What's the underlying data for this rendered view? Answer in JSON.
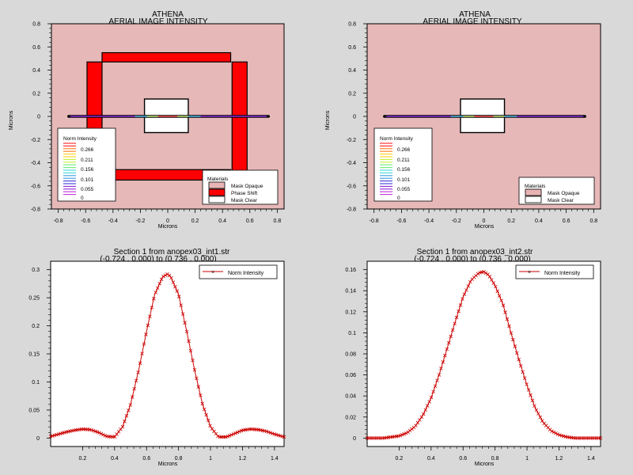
{
  "colors": {
    "background": "#d9d9d9",
    "mask_clear_field": "#e6b8b8",
    "phase_shift": "#ff0000",
    "mask_opaque": "#e8b4b4",
    "mask_clear": "#ffffff",
    "curve": "#cc0000",
    "contour_palette": [
      "#ff2020",
      "#ff7a1a",
      "#ffd21a",
      "#c8f03c",
      "#6fe87a",
      "#3cd8d8",
      "#3c9ce0",
      "#3c3cd8",
      "#8c2cd8",
      "#c02cd8"
    ]
  },
  "chart_data": [
    {
      "type": "heatmap",
      "title": "ATHENA",
      "subtitle": "AERIAL IMAGE INTENSITY",
      "xlabel": "Microns",
      "ylabel": "Microns",
      "xlim": [
        -0.85,
        0.85
      ],
      "ylim": [
        -0.8,
        0.8
      ],
      "xticks": [
        -0.8,
        -0.6,
        -0.4,
        -0.2,
        0,
        0.2,
        0.4,
        0.6,
        0.8
      ],
      "yticks": [
        -0.8,
        -0.6,
        -0.4,
        -0.2,
        0,
        0.2,
        0.4,
        0.6,
        0.8
      ],
      "contour_legend": {
        "title": "Norm Intensity",
        "levels": [
          "0.266",
          "0.211",
          "0.156",
          "0.101",
          "0.055",
          "0"
        ]
      },
      "materials_legend": {
        "title": "Materials",
        "entries": [
          "Mask Opaque",
          "Phase Shift",
          "Mask Clear"
        ]
      },
      "phase_shift_ring": {
        "outer_x": [
          -0.59,
          0.58
        ],
        "outer_y": [
          -0.55,
          0.55
        ],
        "width": 0.1
      },
      "clear_window": {
        "x": [
          -0.17,
          0.15
        ],
        "y": [
          -0.14,
          0.15
        ]
      },
      "cutline": {
        "x": [
          -0.724,
          0.736
        ],
        "y": 0
      },
      "legend_position": "bottom-left and bottom-right"
    },
    {
      "type": "heatmap",
      "title": "ATHENA",
      "subtitle": "AERIAL IMAGE INTENSITY",
      "xlabel": "Microns",
      "ylabel": "Microns",
      "xlim": [
        -0.85,
        0.85
      ],
      "ylim": [
        -0.8,
        0.8
      ],
      "xticks": [
        -0.8,
        -0.6,
        -0.4,
        -0.2,
        0,
        0.2,
        0.4,
        0.6,
        0.8
      ],
      "yticks": [
        -0.8,
        -0.6,
        -0.4,
        -0.2,
        0,
        0.2,
        0.4,
        0.6,
        0.8
      ],
      "contour_legend": {
        "title": "Norm Intensity",
        "levels": [
          "0.266",
          "0.211",
          "0.156",
          "0.101",
          "0.055",
          "0"
        ]
      },
      "materials_legend": {
        "title": "Materials",
        "entries": [
          "Mask Opaque",
          "Mask Clear"
        ]
      },
      "clear_window": {
        "x": [
          -0.17,
          0.15
        ],
        "y": [
          -0.14,
          0.15
        ]
      },
      "cutline": {
        "x": [
          -0.724,
          0.736
        ],
        "y": 0
      },
      "legend_position": "bottom-left and bottom-right"
    },
    {
      "type": "line",
      "title": "Section 1 from anopex03_int1.str",
      "subtitle": "(-0.724 , 0.000) to (0.736 , 0.000)",
      "xlabel": "Microns",
      "ylabel": "",
      "xlim": [
        0,
        1.46
      ],
      "ylim": [
        -0.015,
        0.315
      ],
      "xticks": [
        0.2,
        0.4,
        0.6,
        0.8,
        1,
        1.2,
        1.4
      ],
      "yticks": [
        0,
        0.05,
        0.1,
        0.15,
        0.2,
        0.25,
        0.3
      ],
      "ytick_labels": [
        "0",
        "0.05",
        "0.1",
        "0.15",
        "0.2",
        "0.25",
        "0.3"
      ],
      "legend_position": "top-right",
      "series": [
        {
          "name": "Norm Intensity",
          "x": [
            0.0,
            0.05,
            0.1,
            0.15,
            0.2,
            0.25,
            0.3,
            0.35,
            0.4,
            0.45,
            0.5,
            0.55,
            0.6,
            0.65,
            0.7,
            0.73,
            0.75,
            0.8,
            0.85,
            0.9,
            0.95,
            1.0,
            1.05,
            1.1,
            1.15,
            1.2,
            1.25,
            1.3,
            1.35,
            1.4,
            1.46
          ],
          "y": [
            0.003,
            0.007,
            0.011,
            0.014,
            0.016,
            0.015,
            0.01,
            0.003,
            0.002,
            0.02,
            0.06,
            0.12,
            0.19,
            0.255,
            0.287,
            0.292,
            0.288,
            0.256,
            0.192,
            0.122,
            0.06,
            0.02,
            0.002,
            0.002,
            0.008,
            0.014,
            0.016,
            0.015,
            0.012,
            0.007,
            0.002
          ]
        }
      ]
    },
    {
      "type": "line",
      "title": "Section 1 from anopex03_int2.str",
      "subtitle": "(-0.724 , 0.000) to (0.736 , 0.000)",
      "xlabel": "Microns",
      "ylabel": "",
      "xlim": [
        0,
        1.46
      ],
      "ylim": [
        -0.008,
        0.168
      ],
      "xticks": [
        0.2,
        0.4,
        0.6,
        0.8,
        1,
        1.2,
        1.4
      ],
      "yticks": [
        0,
        0.02,
        0.04,
        0.06,
        0.08,
        0.1,
        0.12,
        0.14,
        0.16
      ],
      "ytick_labels": [
        "0",
        "0.02",
        "0.04",
        "0.06",
        "0.08",
        "0.1",
        "0.12",
        "0.14",
        "0.16"
      ],
      "legend_position": "top-right",
      "series": [
        {
          "name": "Norm Intensity",
          "x": [
            0.0,
            0.1,
            0.15,
            0.2,
            0.25,
            0.3,
            0.35,
            0.4,
            0.45,
            0.5,
            0.55,
            0.6,
            0.65,
            0.7,
            0.73,
            0.76,
            0.8,
            0.85,
            0.9,
            0.95,
            1.0,
            1.05,
            1.1,
            1.15,
            1.2,
            1.25,
            1.3,
            1.4,
            1.46
          ],
          "y": [
            0.0,
            0.0,
            0.001,
            0.002,
            0.005,
            0.011,
            0.022,
            0.038,
            0.06,
            0.085,
            0.11,
            0.134,
            0.15,
            0.157,
            0.158,
            0.155,
            0.145,
            0.127,
            0.1,
            0.074,
            0.05,
            0.029,
            0.015,
            0.007,
            0.003,
            0.001,
            0.0,
            0.0,
            0.0
          ]
        }
      ]
    }
  ]
}
